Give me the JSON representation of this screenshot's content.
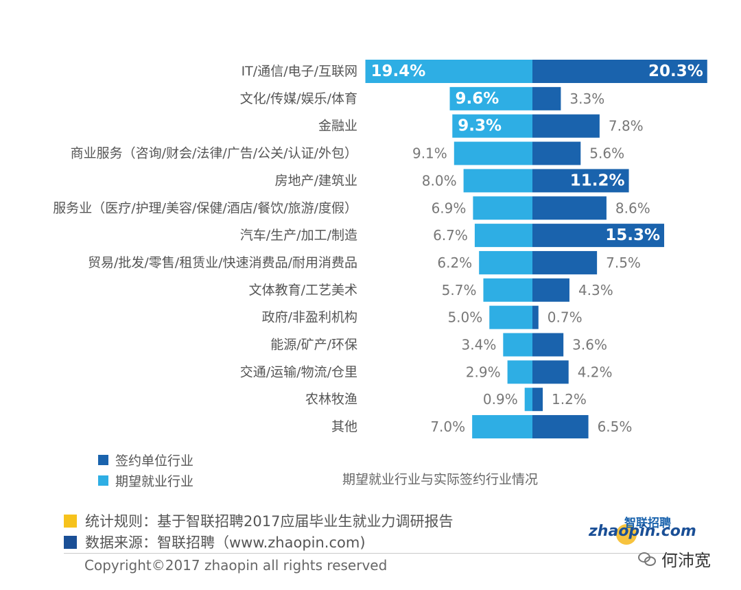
{
  "chart_data": {
    "type": "bar",
    "orientation": "horizontal-diverging",
    "title": "期望就业行业与实际签约行业情况",
    "categories": [
      "IT/通信/电子/互联网",
      "文化/传媒/娱乐/体育",
      "金融业",
      "商业服务（咨询/财会/法律/广告/公关/认证/外包）",
      "房地产/建筑业",
      "服务业（医疗/护理/美容/保健/酒店/餐饮/旅游/度假）",
      "汽车/生产/加工/制造",
      "贸易/批发/零售/租赁业/快速消费品/耐用消费品",
      "文体教育/工艺美术",
      "政府/非盈利机构",
      "能源/矿产/环保",
      "交通/运输/物流/仓里",
      "农林牧渔",
      "其他"
    ],
    "series": [
      {
        "name": "期望就业行业",
        "side": "left",
        "color": "#2eaee4",
        "values": [
          19.4,
          9.6,
          9.3,
          9.1,
          8.0,
          6.9,
          6.7,
          6.2,
          5.7,
          5.0,
          3.4,
          2.9,
          0.9,
          7.0
        ],
        "labels": [
          "19.4%",
          "9.6%",
          "9.3%",
          "9.1%",
          "8.0%",
          "6.9%",
          "6.7%",
          "6.2%",
          "5.7%",
          "5.0%",
          "3.4%",
          "2.9%",
          "0.9%",
          "7.0%"
        ]
      },
      {
        "name": "签约单位行业",
        "side": "right",
        "color": "#1a63ad",
        "values": [
          20.3,
          3.3,
          7.8,
          5.6,
          11.2,
          8.6,
          15.3,
          7.5,
          4.3,
          0.7,
          3.6,
          4.2,
          1.2,
          6.5
        ],
        "labels": [
          "20.3%",
          "3.3%",
          "7.8%",
          "5.6%",
          "11.2%",
          "8.6%",
          "15.3%",
          "7.5%",
          "4.3%",
          "0.7%",
          "3.6%",
          "4.2%",
          "1.2%",
          "6.5%"
        ]
      }
    ],
    "label_inside_threshold": 9.2,
    "grid": false,
    "legend_position": "bottom-left"
  },
  "legend": [
    {
      "label": "签约单位行业",
      "color": "#1a63ad"
    },
    {
      "label": "期望就业行业",
      "color": "#2eaee4"
    }
  ],
  "footer": {
    "notes": [
      {
        "text": "统计规则：基于智联招聘2017应届毕业生就业力调研报告",
        "color": "#f6c21c"
      },
      {
        "text": "数据来源：智联招聘（www.zhaopin.com)",
        "color": "#1a4f96"
      }
    ],
    "copyright": "Copyright©2017 zhaopin all rights reserved"
  },
  "logo": {
    "text_cn": "智联招聘",
    "text_en": "zhaopin.com"
  },
  "watermark": {
    "text": "何沛宽"
  }
}
